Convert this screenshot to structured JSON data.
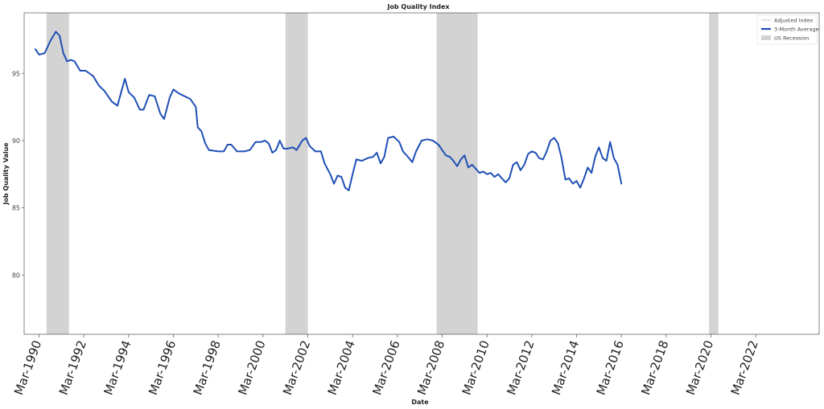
{
  "chart_data": {
    "type": "line",
    "title": "Job Quality Index",
    "xlabel": "Date",
    "ylabel": "Job Quality Value",
    "yticks": [
      80,
      85,
      90,
      95
    ],
    "ylim": [
      75.6,
      99.5
    ],
    "xlim": [
      "1989-07",
      "2025-01"
    ],
    "xticks": [
      {
        "label": "Mar-1990",
        "date": "1990-03"
      },
      {
        "label": "Mar-1992",
        "date": "1992-03"
      },
      {
        "label": "Mar-1994",
        "date": "1994-03"
      },
      {
        "label": "Mar-1996",
        "date": "1996-03"
      },
      {
        "label": "Mar-1998",
        "date": "1998-03"
      },
      {
        "label": "Mar-2000",
        "date": "2000-03"
      },
      {
        "label": "Mar-2002",
        "date": "2002-03"
      },
      {
        "label": "Mar-2004",
        "date": "2004-03"
      },
      {
        "label": "Mar-2006",
        "date": "2006-03"
      },
      {
        "label": "Mar-2008",
        "date": "2008-03"
      },
      {
        "label": "Mar-2010",
        "date": "2010-03"
      },
      {
        "label": "Mar-2012",
        "date": "2012-03"
      },
      {
        "label": "Mar-2014",
        "date": "2014-03"
      },
      {
        "label": "Mar-2016",
        "date": "2016-03"
      },
      {
        "label": "Mar-2018",
        "date": "2018-03"
      },
      {
        "label": "Mar-2020",
        "date": "2020-03"
      },
      {
        "label": "Mar-2022",
        "date": "2022-03"
      }
    ],
    "legend": {
      "placement": "top-right",
      "entries": [
        {
          "label": "Adjusted Index",
          "kind": "line-thin",
          "color": "#bbbbbb"
        },
        {
          "label": "3-Month Average",
          "kind": "line-thick",
          "color": "#1f4fb5"
        },
        {
          "label": "US Recession",
          "kind": "patch",
          "color": "#d3d3d3"
        }
      ]
    },
    "recessions": [
      {
        "start": "1990-07",
        "end": "1991-07"
      },
      {
        "start": "2001-03",
        "end": "2002-03"
      },
      {
        "start": "2007-12",
        "end": "2009-10"
      },
      {
        "start": "2020-02",
        "end": "2020-07"
      }
    ],
    "series": [
      {
        "name": "3-Month Average",
        "color": "#1f4fb5",
        "points": [
          [
            "1990-01",
            96.8
          ],
          [
            "1990-03",
            96.4
          ],
          [
            "1990-06",
            96.5
          ],
          [
            "1990-09",
            97.4
          ],
          [
            "1990-12",
            98.1
          ],
          [
            "1991-02",
            97.8
          ],
          [
            "1991-04",
            96.5
          ],
          [
            "1991-06",
            95.9
          ],
          [
            "1991-08",
            96.0
          ],
          [
            "1991-10",
            95.9
          ],
          [
            "1992-01",
            95.2
          ],
          [
            "1992-04",
            95.2
          ],
          [
            "1992-08",
            94.8
          ],
          [
            "1992-11",
            94.1
          ],
          [
            "1993-02",
            93.7
          ],
          [
            "1993-06",
            92.9
          ],
          [
            "1993-09",
            92.6
          ],
          [
            "1993-11",
            93.6
          ],
          [
            "1994-01",
            94.6
          ],
          [
            "1994-03",
            93.6
          ],
          [
            "1994-06",
            93.2
          ],
          [
            "1994-09",
            92.3
          ],
          [
            "1994-11",
            92.3
          ],
          [
            "1995-02",
            93.4
          ],
          [
            "1995-05",
            93.3
          ],
          [
            "1995-08",
            92.0
          ],
          [
            "1995-10",
            91.6
          ],
          [
            "1996-01",
            93.2
          ],
          [
            "1996-03",
            93.8
          ],
          [
            "1996-06",
            93.5
          ],
          [
            "1996-09",
            93.3
          ],
          [
            "1996-12",
            93.1
          ],
          [
            "1997-03",
            92.5
          ],
          [
            "1997-04",
            91.0
          ],
          [
            "1997-06",
            90.7
          ],
          [
            "1997-08",
            89.8
          ],
          [
            "1997-10",
            89.3
          ],
          [
            "1998-03",
            89.2
          ],
          [
            "1998-06",
            89.2
          ],
          [
            "1998-08",
            89.7
          ],
          [
            "1998-10",
            89.7
          ],
          [
            "1999-01",
            89.2
          ],
          [
            "1999-05",
            89.2
          ],
          [
            "1999-08",
            89.3
          ],
          [
            "1999-11",
            89.9
          ],
          [
            "2000-02",
            89.9
          ],
          [
            "2000-04",
            90.0
          ],
          [
            "2000-06",
            89.8
          ],
          [
            "2000-08",
            89.1
          ],
          [
            "2000-10",
            89.3
          ],
          [
            "2000-12",
            90.0
          ],
          [
            "2001-02",
            89.4
          ],
          [
            "2001-04",
            89.4
          ],
          [
            "2001-07",
            89.5
          ],
          [
            "2001-09",
            89.3
          ],
          [
            "2001-12",
            90.0
          ],
          [
            "2002-02",
            90.2
          ],
          [
            "2002-04",
            89.6
          ],
          [
            "2002-07",
            89.2
          ],
          [
            "2002-10",
            89.2
          ],
          [
            "2002-12",
            88.3
          ],
          [
            "2003-03",
            87.5
          ],
          [
            "2003-05",
            86.8
          ],
          [
            "2003-07",
            87.4
          ],
          [
            "2003-09",
            87.3
          ],
          [
            "2003-11",
            86.5
          ],
          [
            "2004-01",
            86.3
          ],
          [
            "2004-03",
            87.5
          ],
          [
            "2004-05",
            88.6
          ],
          [
            "2004-08",
            88.5
          ],
          [
            "2004-11",
            88.7
          ],
          [
            "2005-02",
            88.8
          ],
          [
            "2005-04",
            89.1
          ],
          [
            "2005-06",
            88.3
          ],
          [
            "2005-08",
            88.8
          ],
          [
            "2005-10",
            90.2
          ],
          [
            "2006-01",
            90.3
          ],
          [
            "2006-04",
            89.9
          ],
          [
            "2006-06",
            89.2
          ],
          [
            "2006-08",
            88.9
          ],
          [
            "2006-11",
            88.4
          ],
          [
            "2007-01",
            89.2
          ],
          [
            "2007-04",
            90.0
          ],
          [
            "2007-07",
            90.1
          ],
          [
            "2007-10",
            90.0
          ],
          [
            "2008-01",
            89.7
          ],
          [
            "2008-03",
            89.3
          ],
          [
            "2008-05",
            88.9
          ],
          [
            "2008-07",
            88.8
          ],
          [
            "2008-09",
            88.5
          ],
          [
            "2008-11",
            88.1
          ],
          [
            "2009-01",
            88.6
          ],
          [
            "2009-03",
            88.9
          ],
          [
            "2009-05",
            88.0
          ],
          [
            "2009-07",
            88.2
          ],
          [
            "2009-09",
            87.9
          ],
          [
            "2009-11",
            87.6
          ],
          [
            "2010-01",
            87.7
          ],
          [
            "2010-03",
            87.5
          ],
          [
            "2010-05",
            87.6
          ],
          [
            "2010-07",
            87.3
          ],
          [
            "2010-09",
            87.5
          ],
          [
            "2010-11",
            87.2
          ],
          [
            "2011-01",
            86.9
          ],
          [
            "2011-03",
            87.2
          ],
          [
            "2011-05",
            88.2
          ],
          [
            "2011-07",
            88.4
          ],
          [
            "2011-09",
            87.8
          ],
          [
            "2011-11",
            88.2
          ],
          [
            "2012-01",
            89.0
          ],
          [
            "2012-03",
            89.2
          ],
          [
            "2012-05",
            89.1
          ],
          [
            "2012-07",
            88.7
          ],
          [
            "2012-09",
            88.6
          ],
          [
            "2012-11",
            89.2
          ],
          [
            "2013-01",
            90.0
          ],
          [
            "2013-03",
            90.2
          ],
          [
            "2013-05",
            89.8
          ],
          [
            "2013-07",
            88.7
          ],
          [
            "2013-09",
            87.1
          ],
          [
            "2013-11",
            87.2
          ],
          [
            "2014-01",
            86.8
          ],
          [
            "2014-03",
            87.0
          ],
          [
            "2014-05",
            86.5
          ],
          [
            "2014-07",
            87.2
          ],
          [
            "2014-09",
            88.0
          ],
          [
            "2014-11",
            87.6
          ],
          [
            "2015-01",
            88.8
          ],
          [
            "2015-03",
            89.5
          ],
          [
            "2015-05",
            88.7
          ],
          [
            "2015-07",
            88.5
          ],
          [
            "2015-09",
            89.9
          ],
          [
            "2015-11",
            88.7
          ],
          [
            "2016-01",
            88.2
          ],
          [
            "2016-03",
            86.8
          ]
        ]
      }
    ]
  }
}
